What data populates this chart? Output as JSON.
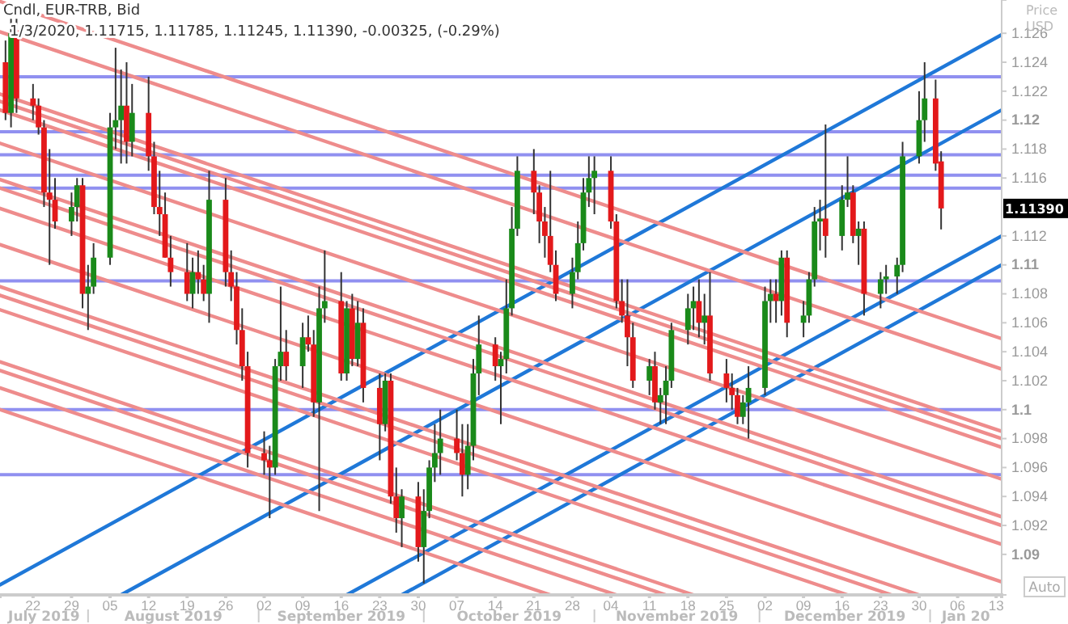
{
  "chart_data": {
    "type": "candlestick",
    "title": "Cndl, EUR-TRB, Bid",
    "subtitle": "1/3/2020, 1.11715, 1.11785, 1.11245, 1.11390, -0.00325, (-0.29%)",
    "ylabel": "Price USD",
    "colors": [
      "#e3191b",
      "#1a8a1a",
      "#e3191b",
      "#e3191b",
      "#e3191b",
      "#e3191b",
      "#e3191b",
      "#e3191b",
      "#1a8a1a",
      "#1a8a1a",
      "#e3191b",
      "#1a8a1a",
      "#1a8a1a",
      "#1a8a1a",
      "#1a8a1a",
      "#1a8a1a",
      "#e3191b",
      "#1a8a1a",
      "#e3191b",
      "#e3191b",
      "#e3191b",
      "#e3191b",
      "#e3191b",
      "#e3191b",
      "#1a8a1a",
      "#e3191b",
      "#e3191b",
      "#1a8a1a",
      "#e3191b",
      "#e3191b",
      "#e3191b",
      "#e3191b",
      "#e3191b",
      "#e3191b",
      "#e3191b",
      "#1a8a1a",
      "#1a8a1a",
      "#e3191b",
      "#1a8a1a",
      "#e3191b",
      "#e3191b",
      "#1a8a1a",
      "#1a8a1a",
      "#e3191b",
      "#1a8a1a",
      "#e3191b",
      "#1a8a1a",
      "#e3191b",
      "#e3191b",
      "#1a8a1a",
      "#e3191b",
      "#e3191b",
      "#1a8a1a",
      "#e3191b",
      "#1a8a1a",
      "#1a8a1a",
      "#1a8a1a",
      "#1a8a1a",
      "#e3191b",
      "#e3191b",
      "#1a8a1a",
      "#1a8a1a",
      "#1a8a1a",
      "#e3191b",
      "#1a8a1a",
      "#1a8a1a",
      "#1a8a1a",
      "#1a8a1a",
      "#e3191b",
      "#e3191b",
      "#e3191b",
      "#e3191b",
      "#e3191b",
      "#1a8a1a",
      "#1a8a1a",
      "#1a8a1a",
      "#1a8a1a",
      "#1a8a1a",
      "#e3191b",
      "#e3191b",
      "#e3191b",
      "#e3191b",
      "#e3191b",
      "#1a8a1a",
      "#e3191b",
      "#1a8a1a",
      "#1a8a1a",
      "#1a8a1a",
      "#1a8a1a",
      "#1a8a1a",
      "#e3191b",
      "#1a8a1a",
      "#e3191b",
      "#e3191b",
      "#e3191b",
      "#e3191b",
      "#1a8a1a",
      "#1a8a1a",
      "#1a8a1a",
      "#1a8a1a",
      "#e3191b",
      "#1a8a1a",
      "#e3191b",
      "#1a8a1a",
      "#1a8a1a",
      "#1a8a1a",
      "#1a8a1a",
      "#e3191b",
      "#1a8a1a",
      "#1a8a1a",
      "#e3191b",
      "#1a8a1a",
      "#e3191b",
      "#1a8a1a",
      "#1a8a1a",
      "#1a8a1a",
      "#1a8a1a",
      "#1a8a1a",
      "#1a8a1a",
      "#e3191b",
      "#e3191b"
    ],
    "x": [
      "2019-07-17",
      "2019-07-18",
      "2019-07-19",
      "2019-07-22",
      "2019-07-23",
      "2019-07-24",
      "2019-07-25",
      "2019-07-26",
      "2019-07-29",
      "2019-07-30",
      "2019-07-31",
      "2019-08-01",
      "2019-08-02",
      "2019-08-05",
      "2019-08-06",
      "2019-08-07",
      "2019-08-08",
      "2019-08-09",
      "2019-08-12",
      "2019-08-13",
      "2019-08-14",
      "2019-08-15",
      "2019-08-16",
      "2019-08-19",
      "2019-08-20",
      "2019-08-21",
      "2019-08-22",
      "2019-08-23",
      "2019-08-26",
      "2019-08-27",
      "2019-08-28",
      "2019-08-29",
      "2019-08-30",
      "2019-09-02",
      "2019-09-03",
      "2019-09-04",
      "2019-09-05",
      "2019-09-06",
      "2019-09-09",
      "2019-09-10",
      "2019-09-11",
      "2019-09-12",
      "2019-09-13",
      "2019-09-16",
      "2019-09-17",
      "2019-09-18",
      "2019-09-19",
      "2019-09-20",
      "2019-09-23",
      "2019-09-24",
      "2019-09-25",
      "2019-09-26",
      "2019-09-27",
      "2019-09-30",
      "2019-10-01",
      "2019-10-02",
      "2019-10-03",
      "2019-10-04",
      "2019-10-07",
      "2019-10-08",
      "2019-10-09",
      "2019-10-10",
      "2019-10-11",
      "2019-10-14",
      "2019-10-15",
      "2019-10-16",
      "2019-10-17",
      "2019-10-18",
      "2019-10-21",
      "2019-10-22",
      "2019-10-23",
      "2019-10-24",
      "2019-10-25",
      "2019-10-28",
      "2019-10-29",
      "2019-10-30",
      "2019-10-31",
      "2019-11-01",
      "2019-11-04",
      "2019-11-05",
      "2019-11-06",
      "2019-11-07",
      "2019-11-08",
      "2019-11-11",
      "2019-11-12",
      "2019-11-13",
      "2019-11-14",
      "2019-11-15",
      "2019-11-18",
      "2019-11-19",
      "2019-11-20",
      "2019-11-21",
      "2019-11-22",
      "2019-11-25",
      "2019-11-26",
      "2019-11-27",
      "2019-11-28",
      "2019-11-29",
      "2019-12-02",
      "2019-12-03",
      "2019-12-04",
      "2019-12-05",
      "2019-12-06",
      "2019-12-09",
      "2019-12-10",
      "2019-12-11",
      "2019-12-12",
      "2019-12-13",
      "2019-12-16",
      "2019-12-17",
      "2019-12-18",
      "2019-12-19",
      "2019-12-20",
      "2019-12-23",
      "2019-12-24",
      "2019-12-26",
      "2019-12-27",
      "2019-12-30",
      "2019-12-31",
      "2020-01-02",
      "2020-01-03"
    ],
    "ohlc": [
      [
        1.124,
        1.1255,
        1.12,
        1.1205
      ],
      [
        1.1205,
        1.127,
        1.1195,
        1.126
      ],
      [
        1.1262,
        1.127,
        1.1205,
        1.1215
      ],
      [
        1.1215,
        1.1225,
        1.12,
        1.121
      ],
      [
        1.121,
        1.1215,
        1.119,
        1.1195
      ],
      [
        1.1195,
        1.12,
        1.114,
        1.115
      ],
      [
        1.115,
        1.118,
        1.11,
        1.1145
      ],
      [
        1.1145,
        1.116,
        1.1125,
        1.113
      ],
      [
        1.113,
        1.115,
        1.112,
        1.114
      ],
      [
        1.114,
        1.116,
        1.113,
        1.1155
      ],
      [
        1.1155,
        1.116,
        1.107,
        1.108
      ],
      [
        1.108,
        1.11,
        1.1055,
        1.1085
      ],
      [
        1.1085,
        1.1115,
        1.108,
        1.1105
      ],
      [
        1.1105,
        1.1205,
        1.11,
        1.1195
      ],
      [
        1.1195,
        1.125,
        1.118,
        1.12
      ],
      [
        1.12,
        1.1235,
        1.117,
        1.121
      ],
      [
        1.121,
        1.124,
        1.117,
        1.1185
      ],
      [
        1.1185,
        1.1225,
        1.1175,
        1.1205
      ],
      [
        1.1205,
        1.123,
        1.1165,
        1.1175
      ],
      [
        1.1175,
        1.1185,
        1.1135,
        1.114
      ],
      [
        1.114,
        1.1165,
        1.112,
        1.1135
      ],
      [
        1.1135,
        1.115,
        1.1105,
        1.1105
      ],
      [
        1.1105,
        1.112,
        1.1085,
        1.1095
      ],
      [
        1.1095,
        1.1115,
        1.1075,
        1.108
      ],
      [
        1.108,
        1.1105,
        1.107,
        1.1095
      ],
      [
        1.1095,
        1.111,
        1.108,
        1.109
      ],
      [
        1.109,
        1.11,
        1.1075,
        1.108
      ],
      [
        1.108,
        1.1165,
        1.106,
        1.1145
      ],
      [
        1.1145,
        1.116,
        1.1085,
        1.1095
      ],
      [
        1.1095,
        1.111,
        1.1075,
        1.1085
      ],
      [
        1.1085,
        1.1095,
        1.1045,
        1.1055
      ],
      [
        1.1055,
        1.107,
        1.102,
        1.103
      ],
      [
        1.103,
        1.104,
        1.096,
        1.097
      ],
      [
        1.097,
        1.0985,
        1.0955,
        1.0965
      ],
      [
        1.0965,
        1.0975,
        1.0925,
        1.096
      ],
      [
        1.096,
        1.1035,
        1.0955,
        1.103
      ],
      [
        1.103,
        1.1085,
        1.102,
        1.104
      ],
      [
        1.104,
        1.1055,
        1.102,
        1.103
      ],
      [
        1.103,
        1.106,
        1.1015,
        1.105
      ],
      [
        1.105,
        1.1065,
        1.104,
        1.1045
      ],
      [
        1.1045,
        1.1055,
        1.0995,
        1.1005
      ],
      [
        1.1005,
        1.1085,
        1.093,
        1.107
      ],
      [
        1.107,
        1.111,
        1.106,
        1.1075
      ],
      [
        1.1075,
        1.1095,
        1.102,
        1.1025
      ],
      [
        1.1025,
        1.1075,
        1.102,
        1.107
      ],
      [
        1.107,
        1.108,
        1.103,
        1.1035
      ],
      [
        1.1035,
        1.1075,
        1.103,
        1.106
      ],
      [
        1.106,
        1.107,
        1.1005,
        1.1015
      ],
      [
        1.1015,
        1.1025,
        1.0965,
        1.099
      ],
      [
        1.099,
        1.1025,
        1.0985,
        1.102
      ],
      [
        1.102,
        1.1025,
        1.0935,
        1.094
      ],
      [
        1.094,
        1.096,
        1.0915,
        1.0925
      ],
      [
        1.0925,
        1.0945,
        1.0905,
        1.094
      ],
      [
        1.094,
        1.095,
        1.0895,
        1.0905
      ],
      [
        1.0905,
        1.0945,
        1.088,
        1.093
      ],
      [
        1.093,
        1.0965,
        1.0925,
        1.096
      ],
      [
        1.096,
        1.099,
        1.095,
        1.097
      ],
      [
        1.097,
        1.1,
        1.0955,
        1.098
      ],
      [
        1.098,
        1.1,
        1.0965,
        1.097
      ],
      [
        1.097,
        1.099,
        1.094,
        1.0955
      ],
      [
        1.0955,
        1.099,
        1.0945,
        1.0975
      ],
      [
        1.0975,
        1.1035,
        1.0965,
        1.1025
      ],
      [
        1.1025,
        1.1065,
        1.101,
        1.1045
      ],
      [
        1.1045,
        1.105,
        1.102,
        1.103
      ],
      [
        1.103,
        1.104,
        1.099,
        1.1035
      ],
      [
        1.1035,
        1.109,
        1.1025,
        1.107
      ],
      [
        1.107,
        1.114,
        1.1065,
        1.1125
      ],
      [
        1.1125,
        1.1175,
        1.112,
        1.1165
      ],
      [
        1.1165,
        1.118,
        1.1135,
        1.115
      ],
      [
        1.115,
        1.1155,
        1.1115,
        1.113
      ],
      [
        1.113,
        1.114,
        1.1105,
        1.112
      ],
      [
        1.112,
        1.1165,
        1.1095,
        1.11
      ],
      [
        1.11,
        1.111,
        1.1075,
        1.108
      ],
      [
        1.108,
        1.1105,
        1.107,
        1.1095
      ],
      [
        1.1095,
        1.113,
        1.109,
        1.1115
      ],
      [
        1.1115,
        1.116,
        1.111,
        1.115
      ],
      [
        1.115,
        1.1175,
        1.114,
        1.116
      ],
      [
        1.116,
        1.1175,
        1.1135,
        1.1165
      ],
      [
        1.1165,
        1.1175,
        1.1125,
        1.113
      ],
      [
        1.113,
        1.1135,
        1.107,
        1.1075
      ],
      [
        1.1075,
        1.109,
        1.106,
        1.1065
      ],
      [
        1.1065,
        1.109,
        1.103,
        1.105
      ],
      [
        1.105,
        1.106,
        1.1015,
        1.102
      ],
      [
        1.102,
        1.1035,
        1.101,
        1.103
      ],
      [
        1.103,
        1.104,
        1.1,
        1.1005
      ],
      [
        1.1005,
        1.1015,
        1.099,
        1.101
      ],
      [
        1.101,
        1.103,
        1.099,
        1.102
      ],
      [
        1.102,
        1.106,
        1.1015,
        1.1055
      ],
      [
        1.1055,
        1.108,
        1.1045,
        1.107
      ],
      [
        1.107,
        1.1085,
        1.1055,
        1.1075
      ],
      [
        1.1075,
        1.109,
        1.105,
        1.106
      ],
      [
        1.106,
        1.108,
        1.1045,
        1.1065
      ],
      [
        1.1065,
        1.1095,
        1.102,
        1.1025
      ],
      [
        1.1025,
        1.1035,
        1.1005,
        1.1015
      ],
      [
        1.1015,
        1.1025,
        1.1,
        1.101
      ],
      [
        1.101,
        1.1015,
        1.099,
        1.0995
      ],
      [
        1.0995,
        1.101,
        1.099,
        1.1005
      ],
      [
        1.1005,
        1.103,
        1.098,
        1.1015
      ],
      [
        1.1015,
        1.1085,
        1.101,
        1.1075
      ],
      [
        1.1075,
        1.109,
        1.106,
        1.108
      ],
      [
        1.108,
        1.109,
        1.106,
        1.1075
      ],
      [
        1.1075,
        1.111,
        1.1065,
        1.1105
      ],
      [
        1.1105,
        1.111,
        1.105,
        1.106
      ],
      [
        1.106,
        1.1075,
        1.105,
        1.1065
      ],
      [
        1.1065,
        1.1095,
        1.106,
        1.109
      ],
      [
        1.109,
        1.114,
        1.1085,
        1.113
      ],
      [
        1.113,
        1.1145,
        1.111,
        1.1132
      ],
      [
        1.1132,
        1.1197,
        1.1105,
        1.112
      ],
      [
        1.112,
        1.1155,
        1.111,
        1.1145
      ],
      [
        1.1145,
        1.1175,
        1.114,
        1.115
      ],
      [
        1.115,
        1.1155,
        1.1115,
        1.112
      ],
      [
        1.112,
        1.113,
        1.11,
        1.1125
      ],
      [
        1.1125,
        1.113,
        1.1065,
        1.108
      ],
      [
        1.108,
        1.1095,
        1.107,
        1.109
      ],
      [
        1.109,
        1.11,
        1.108,
        1.1092
      ],
      [
        1.1092,
        1.1105,
        1.108,
        1.11
      ],
      [
        1.11,
        1.1185,
        1.1095,
        1.1175
      ],
      [
        1.1175,
        1.122,
        1.117,
        1.12
      ],
      [
        1.12,
        1.124,
        1.1185,
        1.1215
      ],
      [
        1.1215,
        1.1228,
        1.1165,
        1.117
      ],
      [
        1.11715,
        1.11785,
        1.11245,
        1.1139
      ]
    ],
    "series": [
      {
        "type": "line",
        "color": "#1f78d8",
        "x": [
          "2019-07-16",
          "2020-01-14"
        ],
        "values": [
          1.0879,
          1.1259
        ]
      },
      {
        "type": "line",
        "color": "#1f78d8",
        "x": [
          "2019-08-07",
          "2020-01-14"
        ],
        "values": [
          1.0872,
          1.1207
        ]
      },
      {
        "type": "line",
        "color": "#1f78d8",
        "x": [
          "2019-09-17",
          "2020-01-14"
        ],
        "values": [
          1.0872,
          1.112
        ]
      },
      {
        "type": "line",
        "color": "#1f78d8",
        "x": [
          "2019-09-27",
          "2020-01-14"
        ],
        "values": [
          1.0872,
          1.11
        ]
      },
      {
        "type": "line",
        "color": "#ee8c8c",
        "x": [
          "2019-07-16",
          "2020-01-14"
        ],
        "values": [
          1.1282,
          1.1049
        ]
      },
      {
        "type": "line",
        "color": "#ee8c8c",
        "x": [
          "2019-07-16",
          "2020-01-14"
        ],
        "values": [
          1.1261,
          1.1028
        ]
      },
      {
        "type": "line",
        "color": "#ee8c8c",
        "x": [
          "2019-07-16",
          "2020-01-14"
        ],
        "values": [
          1.1218,
          1.0985
        ]
      },
      {
        "type": "line",
        "color": "#ee8c8c",
        "x": [
          "2019-07-16",
          "2020-01-14"
        ],
        "values": [
          1.1213,
          1.098
        ]
      },
      {
        "type": "line",
        "color": "#ee8c8c",
        "x": [
          "2019-07-16",
          "2020-01-14"
        ],
        "values": [
          1.1207,
          1.0974
        ]
      },
      {
        "type": "line",
        "color": "#ee8c8c",
        "x": [
          "2019-07-16",
          "2020-01-14"
        ],
        "values": [
          1.1184,
          1.0952
        ]
      },
      {
        "type": "line",
        "color": "#ee8c8c",
        "x": [
          "2019-07-16",
          "2020-01-14"
        ],
        "values": [
          1.1159,
          1.0926
        ]
      },
      {
        "type": "line",
        "color": "#ee8c8c",
        "x": [
          "2019-07-16",
          "2020-01-14"
        ],
        "values": [
          1.1153,
          1.092
        ]
      },
      {
        "type": "line",
        "color": "#ee8c8c",
        "x": [
          "2019-07-16",
          "2020-01-14"
        ],
        "values": [
          1.1139,
          1.0907
        ]
      },
      {
        "type": "line",
        "color": "#ee8c8c",
        "x": [
          "2019-07-16",
          "2020-01-14"
        ],
        "values": [
          1.1114,
          1.0881
        ]
      },
      {
        "type": "line",
        "color": "#ee8c8c",
        "x": [
          "2019-07-16",
          "2019-12-30"
        ],
        "values": [
          1.1085,
          1.0872
        ]
      },
      {
        "type": "line",
        "color": "#ee8c8c",
        "x": [
          "2019-07-16",
          "2019-12-25"
        ],
        "values": [
          1.1079,
          1.0872
        ]
      },
      {
        "type": "line",
        "color": "#ee8c8c",
        "x": [
          "2019-07-16",
          "2019-12-17"
        ],
        "values": [
          1.1069,
          1.0872
        ]
      },
      {
        "type": "line",
        "color": "#ee8c8c",
        "x": [
          "2019-07-16",
          "2019-11-19"
        ],
        "values": [
          1.1033,
          1.0872
        ]
      },
      {
        "type": "line",
        "color": "#ee8c8c",
        "x": [
          "2019-07-16",
          "2019-11-14"
        ],
        "values": [
          1.1027,
          1.0872
        ]
      },
      {
        "type": "line",
        "color": "#ee8c8c",
        "x": [
          "2019-07-16",
          "2019-11-05"
        ],
        "values": [
          1.1015,
          1.0872
        ]
      },
      {
        "type": "line",
        "color": "#ee8c8c",
        "x": [
          "2019-07-16",
          "2019-10-24"
        ],
        "values": [
          1.1,
          1.0872
        ]
      }
    ],
    "ref_lines": [
      {
        "axis": "y",
        "value": 1.123,
        "color": "#9090f0"
      },
      {
        "axis": "y",
        "value": 1.1192,
        "color": "#9090f0"
      },
      {
        "axis": "y",
        "value": 1.1176,
        "color": "#9090f0"
      },
      {
        "axis": "y",
        "value": 1.1162,
        "color": "#9090f0"
      },
      {
        "axis": "y",
        "value": 1.1153,
        "color": "#9090f0"
      },
      {
        "axis": "y",
        "value": 1.1089,
        "color": "#9090f0"
      },
      {
        "axis": "y",
        "value": 1.1,
        "color": "#9090f0"
      },
      {
        "axis": "y",
        "value": 1.0955,
        "color": "#9090f0"
      }
    ],
    "xlim": [
      "2019-07-16",
      "2020-01-14"
    ],
    "xticks": [
      {
        "value": "2019-07-22",
        "label": "22"
      },
      {
        "value": "2019-07-29",
        "label": "29"
      },
      {
        "value": "2019-08-05",
        "label": "05"
      },
      {
        "value": "2019-08-12",
        "label": "12"
      },
      {
        "value": "2019-08-19",
        "label": "19"
      },
      {
        "value": "2019-08-26",
        "label": "26"
      },
      {
        "value": "2019-09-02",
        "label": "02"
      },
      {
        "value": "2019-09-09",
        "label": "09"
      },
      {
        "value": "2019-09-16",
        "label": "16"
      },
      {
        "value": "2019-09-23",
        "label": "23"
      },
      {
        "value": "2019-09-30",
        "label": "30"
      },
      {
        "value": "2019-10-07",
        "label": "07"
      },
      {
        "value": "2019-10-14",
        "label": "14"
      },
      {
        "value": "2019-10-21",
        "label": "21"
      },
      {
        "value": "2019-10-28",
        "label": "28"
      },
      {
        "value": "2019-11-04",
        "label": "04"
      },
      {
        "value": "2019-11-11",
        "label": "11"
      },
      {
        "value": "2019-11-18",
        "label": "18"
      },
      {
        "value": "2019-11-25",
        "label": "25"
      },
      {
        "value": "2019-12-02",
        "label": "02"
      },
      {
        "value": "2019-12-09",
        "label": "09"
      },
      {
        "value": "2019-12-16",
        "label": "16"
      },
      {
        "value": "2019-12-23",
        "label": "23"
      },
      {
        "value": "2019-12-30",
        "label": "30"
      },
      {
        "value": "2020-01-06",
        "label": "06"
      },
      {
        "value": "2020-01-13",
        "label": "13"
      }
    ],
    "ylim": [
      1.0872,
      1.1283
    ],
    "yticks": [
      1.09,
      1.092,
      1.094,
      1.096,
      1.098,
      1.1,
      1.102,
      1.104,
      1.106,
      1.108,
      1.11,
      1.112,
      1.116,
      1.118,
      1.12,
      1.122,
      1.124,
      1.126
    ],
    "annotations": [
      "1.11390",
      "July 2019",
      "August 2019",
      "September 2019",
      "October 2019",
      "November 2019",
      "December 2019",
      "Jan 20",
      "Auto"
    ],
    "grid": false
  }
}
